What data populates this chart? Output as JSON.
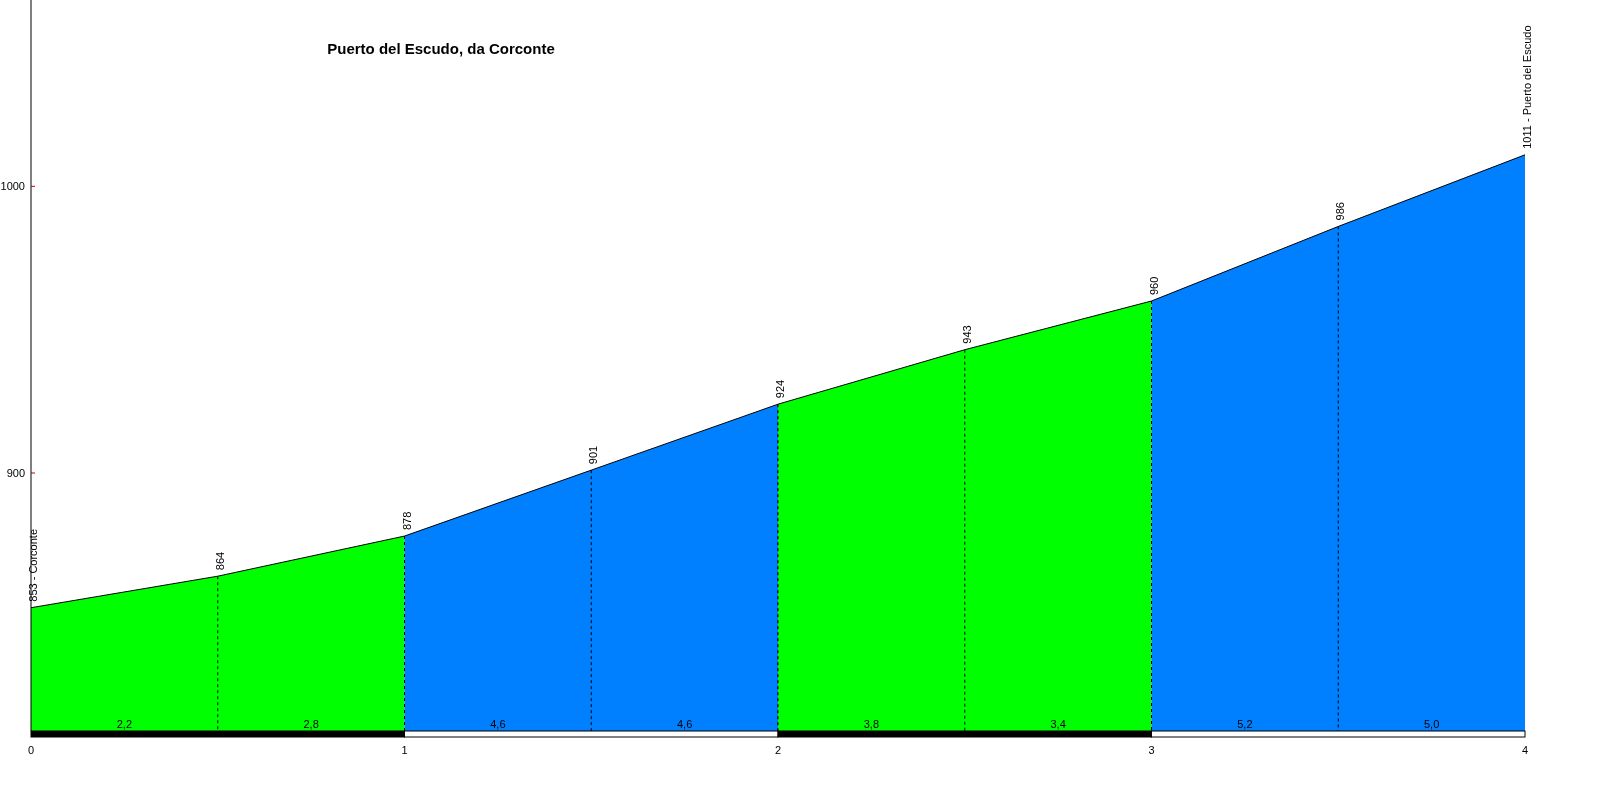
{
  "chart_data": {
    "type": "area",
    "title": "Puerto del Escudo, da Corconte",
    "series": [
      {
        "color": "#00ff00",
        "x": [
          0,
          0.5,
          1
        ],
        "values": [
          853,
          864,
          878
        ],
        "value_labels": [
          "853 - Corconte",
          "864",
          null
        ]
      },
      {
        "color": "#0080ff",
        "x": [
          1,
          1.5,
          2
        ],
        "values": [
          878,
          901,
          924
        ],
        "value_labels": [
          "878",
          "901",
          null
        ]
      },
      {
        "color": "#00ff00",
        "x": [
          2,
          2.5,
          3
        ],
        "values": [
          924,
          943,
          960
        ],
        "value_labels": [
          "924",
          "943",
          null
        ]
      },
      {
        "color": "#0080ff",
        "x": [
          3,
          3.5,
          4
        ],
        "values": [
          960,
          986,
          1011
        ],
        "value_labels": [
          "960",
          "986",
          "1011 - Puerto del Escudo"
        ]
      }
    ],
    "annotations": [
      "2,2",
      "2,8",
      "4,6",
      "4,6",
      "3,8",
      "3,4",
      "5,2",
      "5,0"
    ],
    "xlim": [
      0,
      4
    ],
    "xticks": [
      0,
      1,
      2,
      3,
      4
    ],
    "ylim": [
      810,
      1065
    ],
    "yticks": [
      900,
      1000
    ]
  }
}
